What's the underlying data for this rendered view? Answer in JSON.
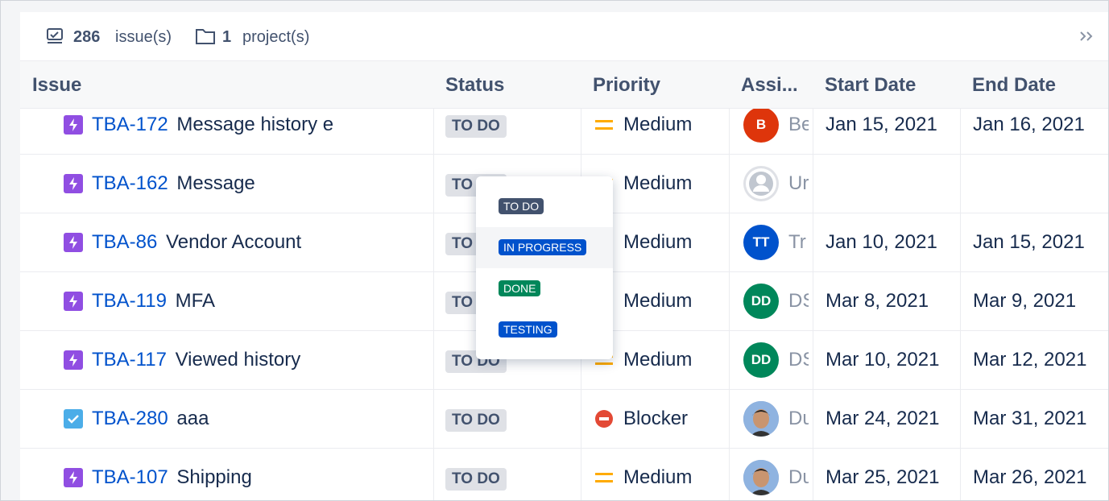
{
  "toolbar": {
    "issues_count": "286",
    "issues_label": "issue(s)",
    "projects_count": "1",
    "projects_label": "project(s)"
  },
  "table": {
    "columns": [
      "Issue",
      "Status",
      "Priority",
      "Assi...",
      "Start Date",
      "End Date"
    ],
    "rows": [
      {
        "key": "TBA-172",
        "summary": "Message history e",
        "status": "TO DO",
        "priority": "Medium",
        "priority_color": "#ffab00",
        "icon_color": "#904ee2",
        "avatar_initials": "B",
        "avatar_color": "#de350b",
        "assignee": "Be",
        "start": "Jan 15, 2021",
        "end": "Jan 16, 2021"
      },
      {
        "key": "TBA-162",
        "summary": "Message",
        "status": "TO DO",
        "priority": "Medium",
        "priority_color": "#ffab00",
        "icon_color": "#904ee2",
        "avatar_color": "#dfe1e6",
        "assignee": "Ur"
      },
      {
        "key": "TBA-86",
        "summary": "Vendor Account",
        "status": "TO DO",
        "priority": "Medium",
        "priority_color": "#ffab00",
        "icon_color": "#904ee2",
        "avatar_initials": "TT",
        "avatar_color": "#0052cc",
        "assignee": "Tr",
        "start": "Jan 10, 2021",
        "end": "Jan 15, 2021"
      },
      {
        "key": "TBA-119",
        "summary": "MFA",
        "status": "TO DO",
        "priority": "Medium",
        "priority_color": "#ffab00",
        "icon_color": "#904ee2",
        "avatar_initials": "DD",
        "avatar_color": "#00875a",
        "assignee": "DS",
        "start": "Mar 8, 2021",
        "end": "Mar 9, 2021"
      },
      {
        "key": "TBA-117",
        "summary": "Viewed history",
        "status": "TO DO",
        "priority": "Medium",
        "priority_color": "#ffab00",
        "icon_color": "#904ee2",
        "avatar_initials": "DD",
        "avatar_color": "#00875a",
        "assignee": "DS",
        "start": "Mar 10, 2021",
        "end": "Mar 12, 2021"
      },
      {
        "key": "TBA-280",
        "summary": "aaa",
        "status": "TO DO",
        "priority": "Blocker",
        "priority_color": "#e34935",
        "icon_color": "#4bade8",
        "avatar_color": "#6b8fc7",
        "assignee": "Du",
        "start": "Mar 24, 2021",
        "end": "Mar 31, 2021"
      },
      {
        "key": "TBA-107",
        "summary": "Shipping",
        "status": "TO DO",
        "priority": "Medium",
        "priority_color": "#ffab00",
        "icon_color": "#904ee2",
        "avatar_color": "#6b8fc7",
        "assignee": "Du",
        "start": "Mar 25, 2021",
        "end": "Mar 26, 2021"
      }
    ]
  },
  "dropdown": {
    "options": [
      {
        "label": "TO DO",
        "color": "#42526e"
      },
      {
        "label": "IN PROGRESS",
        "color": "#0052cc"
      },
      {
        "label": "DONE",
        "color": "#00875a"
      },
      {
        "label": "TESTING",
        "color": "#0052cc"
      }
    ]
  }
}
